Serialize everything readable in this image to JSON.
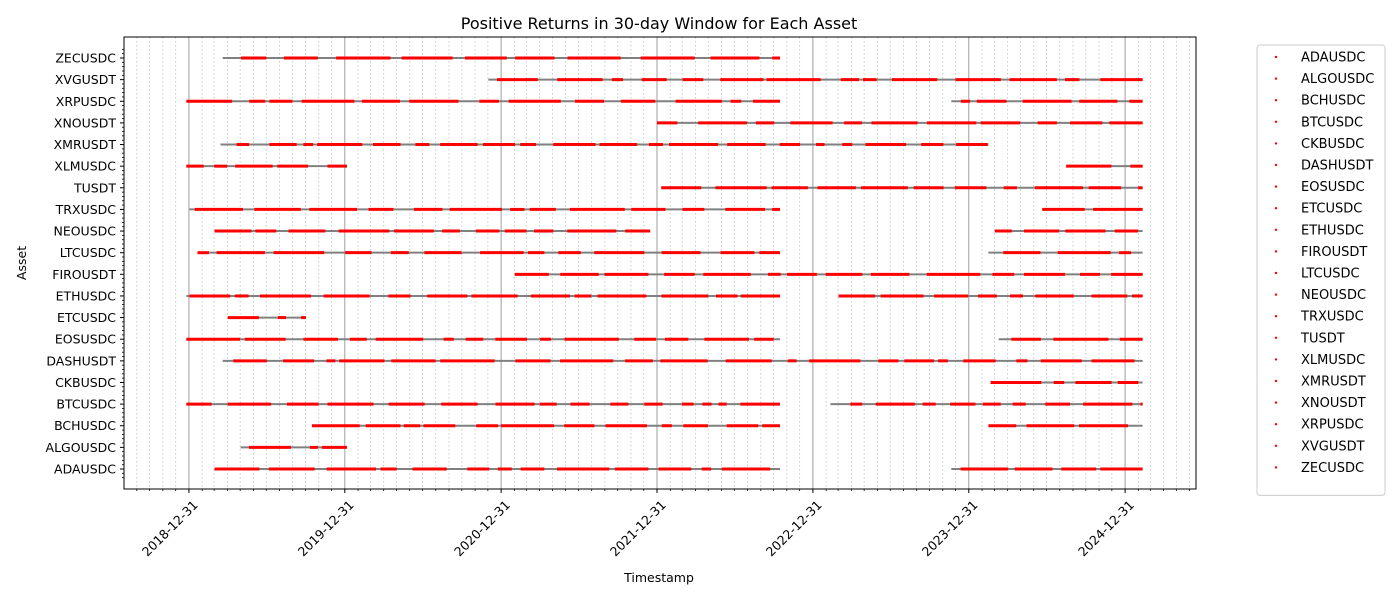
{
  "chart_data": {
    "type": "scatter",
    "title": "Positive Returns in 30-day Window for Each Asset",
    "xlabel": "Timestamp",
    "ylabel": "Asset",
    "xlim": [
      "2018-08-01",
      "2025-06-15"
    ],
    "grid": "x-major-and-minor",
    "legend_placement": "outside-right",
    "colors": {
      "positive": "#ff0000",
      "timeline": "#808080"
    },
    "x_ticks": [
      "2018-12-31",
      "2019-12-31",
      "2020-12-31",
      "2021-12-31",
      "2022-12-31",
      "2023-12-31",
      "2024-12-31"
    ],
    "categories": [
      "ADAUSDC",
      "ALGOUSDC",
      "BCHUSDC",
      "BTCUSDC",
      "CKBUSDC",
      "DASHUSDT",
      "EOSUSDC",
      "ETCUSDC",
      "ETHUSDC",
      "FIROUSDT",
      "LTCUSDC",
      "NEOUSDC",
      "TRXUSDC",
      "TUSDT",
      "XLMUSDC",
      "XMRUSDT",
      "XNOUSDT",
      "XRPUSDC",
      "XVGUSDT",
      "ZECUSDC"
    ],
    "series": [
      {
        "name": "ADAUSDC",
        "spans": [
          [
            "2019-03-01",
            "2022-10-15"
          ],
          [
            "2023-11-20",
            "2025-02-10"
          ]
        ]
      },
      {
        "name": "ALGOUSDC",
        "spans": [
          [
            "2019-05-01",
            "2020-01-05"
          ]
        ]
      },
      {
        "name": "BCHUSDC",
        "spans": [
          [
            "2019-10-15",
            "2022-10-15"
          ],
          [
            "2024-02-15",
            "2025-02-10"
          ]
        ]
      },
      {
        "name": "BTCUSDC",
        "spans": [
          [
            "2018-12-25",
            "2022-10-15"
          ],
          [
            "2023-02-10",
            "2025-02-10"
          ]
        ]
      },
      {
        "name": "CKBUSDC",
        "spans": [
          [
            "2024-02-20",
            "2025-02-10"
          ]
        ]
      },
      {
        "name": "DASHUSDT",
        "spans": [
          [
            "2019-03-20",
            "2025-02-10"
          ]
        ]
      },
      {
        "name": "EOSUSDC",
        "spans": [
          [
            "2018-12-25",
            "2022-10-15"
          ],
          [
            "2024-03-10",
            "2025-02-10"
          ]
        ]
      },
      {
        "name": "ETCUSDC",
        "spans": [
          [
            "2019-04-01",
            "2019-10-01"
          ]
        ]
      },
      {
        "name": "ETHUSDC",
        "spans": [
          [
            "2018-12-25",
            "2022-10-15"
          ],
          [
            "2023-03-01",
            "2025-02-10"
          ]
        ]
      },
      {
        "name": "FIROUSDT",
        "spans": [
          [
            "2021-02-01",
            "2025-02-10"
          ]
        ]
      },
      {
        "name": "LTCUSDC",
        "spans": [
          [
            "2019-01-20",
            "2022-10-15"
          ],
          [
            "2024-02-15",
            "2025-02-10"
          ]
        ]
      },
      {
        "name": "NEOUSDC",
        "spans": [
          [
            "2019-03-01",
            "2021-12-15"
          ],
          [
            "2024-03-01",
            "2025-02-10"
          ]
        ]
      },
      {
        "name": "TRXUSDC",
        "spans": [
          [
            "2019-01-01",
            "2022-10-15"
          ],
          [
            "2024-06-20",
            "2025-02-10"
          ]
        ]
      },
      {
        "name": "TUSDT",
        "spans": [
          [
            "2022-01-10",
            "2025-02-10"
          ]
        ]
      },
      {
        "name": "XLMUSDC",
        "spans": [
          [
            "2018-12-25",
            "2020-01-05"
          ],
          [
            "2024-08-15",
            "2025-02-10"
          ]
        ]
      },
      {
        "name": "XMRUSDT",
        "spans": [
          [
            "2019-03-15",
            "2024-02-15"
          ]
        ]
      },
      {
        "name": "XNOUSDT",
        "spans": [
          [
            "2021-12-31",
            "2025-02-10"
          ]
        ]
      },
      {
        "name": "XRPUSDC",
        "spans": [
          [
            "2018-12-25",
            "2022-10-15"
          ],
          [
            "2023-11-20",
            "2025-02-10"
          ]
        ]
      },
      {
        "name": "XVGUSDT",
        "spans": [
          [
            "2020-12-01",
            "2025-02-10"
          ]
        ]
      },
      {
        "name": "ZECUSDC",
        "spans": [
          [
            "2019-03-20",
            "2022-10-15"
          ]
        ]
      }
    ]
  }
}
